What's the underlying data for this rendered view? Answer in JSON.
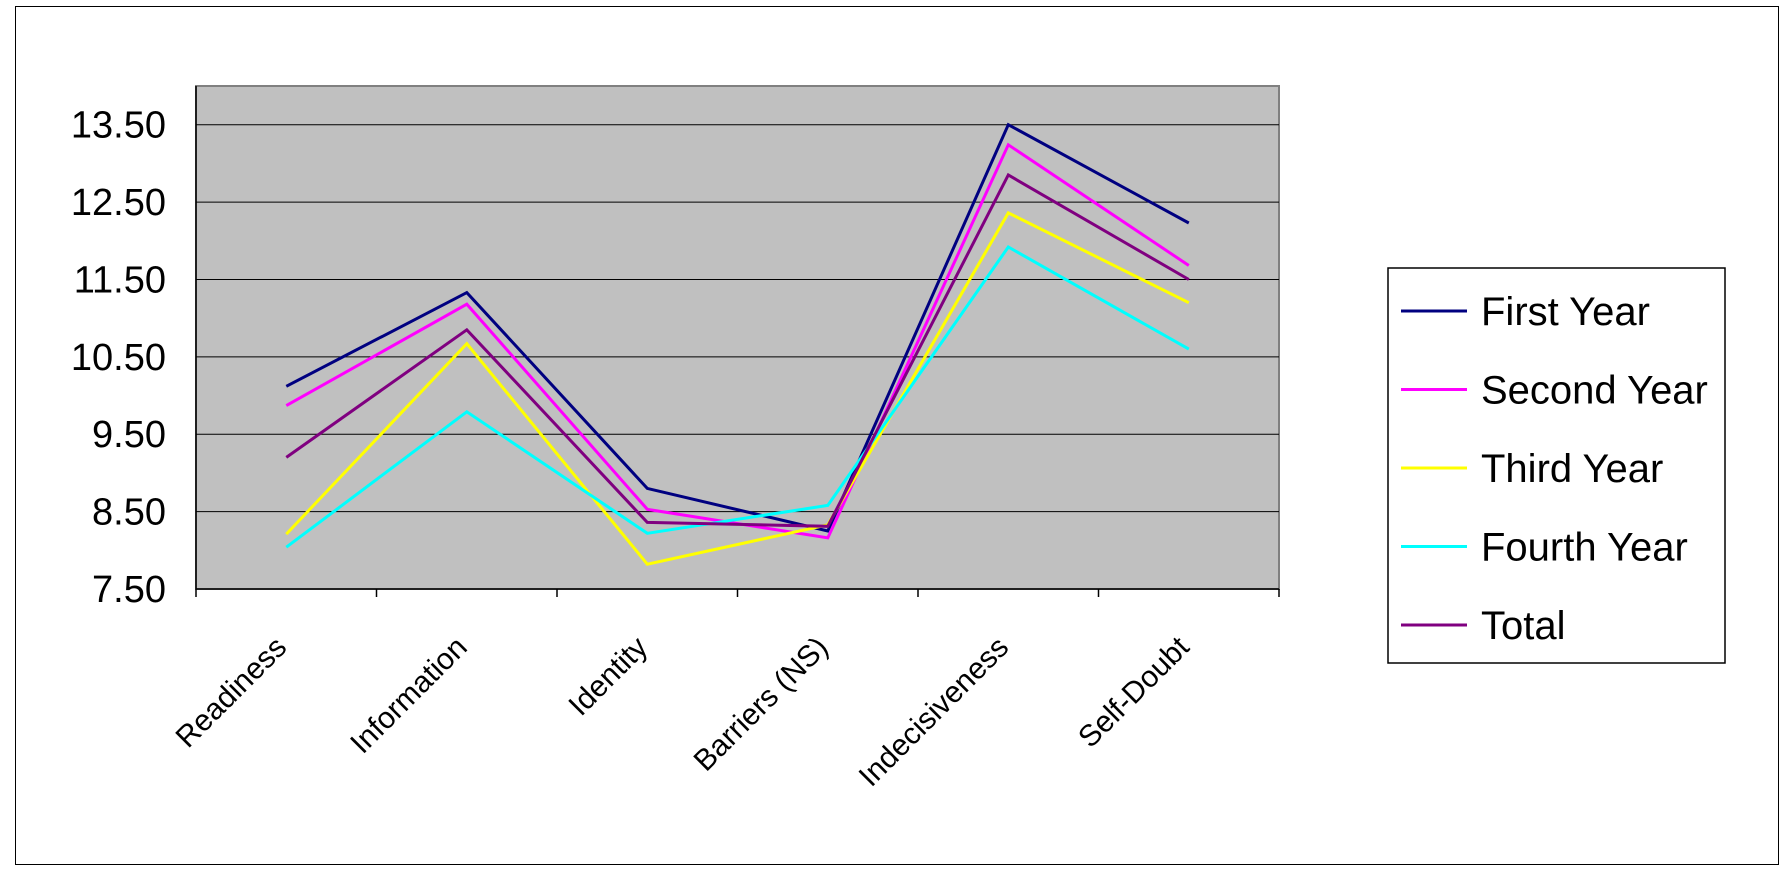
{
  "chart_data": {
    "type": "line",
    "title": "",
    "xlabel": "",
    "ylabel": "",
    "categories": [
      "Readiness",
      "Information",
      "Identity",
      "Barriers (NS)",
      "Indecisiveness",
      "Self-Doubt"
    ],
    "yticks": [
      "7.50",
      "8.50",
      "9.50",
      "10.50",
      "11.50",
      "12.50",
      "13.50"
    ],
    "ylim": [
      7.5,
      14.0
    ],
    "grid": true,
    "legend_position": "right",
    "plot_background": "#C0C0C0",
    "series": [
      {
        "name": "First Year",
        "color": "#000080",
        "values": [
          10.12,
          11.33,
          8.8,
          8.25,
          13.5,
          12.23
        ]
      },
      {
        "name": "Second Year",
        "color": "#FF00FF",
        "values": [
          9.87,
          11.18,
          8.53,
          8.16,
          13.24,
          11.68
        ]
      },
      {
        "name": "Third Year",
        "color": "#FFFF00",
        "values": [
          8.21,
          10.67,
          7.82,
          8.33,
          12.36,
          11.2
        ]
      },
      {
        "name": "Fourth Year",
        "color": "#00FFFF",
        "values": [
          8.04,
          9.79,
          8.22,
          8.58,
          11.92,
          10.6
        ]
      },
      {
        "name": "Total",
        "color": "#800080",
        "values": [
          9.2,
          10.85,
          8.36,
          8.31,
          12.85,
          11.5
        ]
      }
    ]
  }
}
